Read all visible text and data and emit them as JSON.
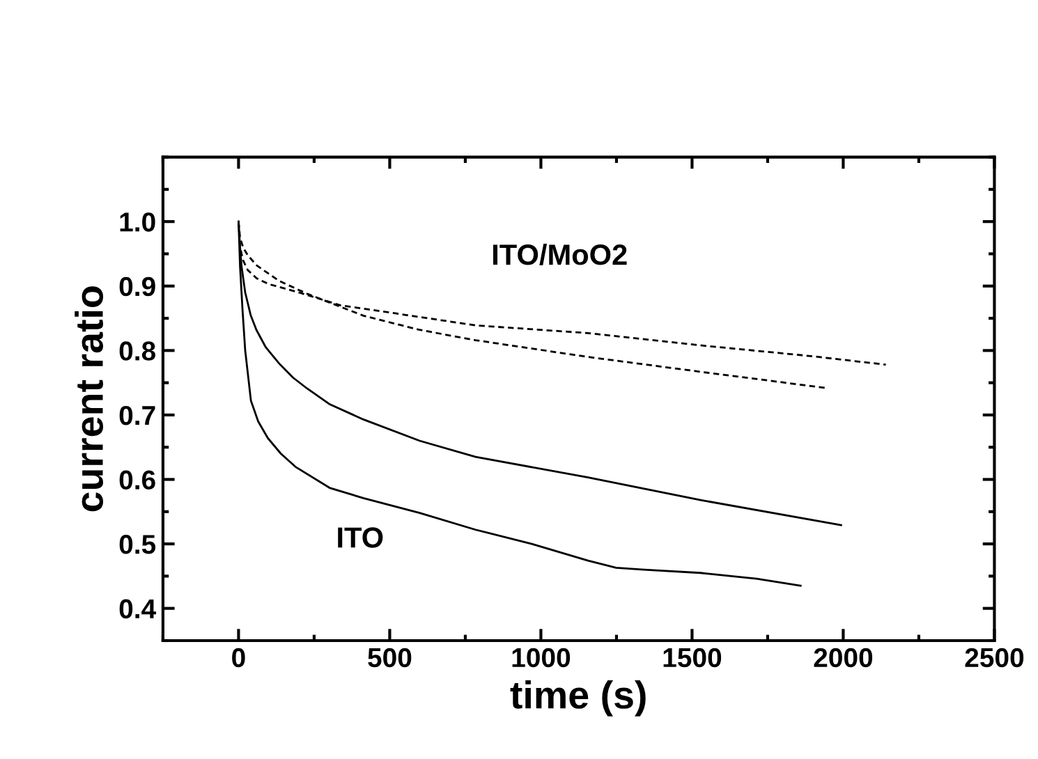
{
  "chart_data": {
    "type": "line",
    "xlabel": "time (s)",
    "ylabel": "current ratio",
    "xlim": [
      -250,
      2500
    ],
    "xticks": [
      0,
      500,
      1000,
      1500,
      2000,
      2500
    ],
    "ylim": [
      0.35,
      1.1
    ],
    "yticks": [
      {
        "value": 0.4,
        "label": "0.4"
      },
      {
        "value": 0.5,
        "label": "0.5"
      },
      {
        "value": 0.6,
        "label": "0.6"
      },
      {
        "value": 0.7,
        "label": "0.7"
      },
      {
        "value": 0.8,
        "label": "0.8"
      },
      {
        "value": 0.9,
        "label": "0.9"
      },
      {
        "value": 1.0,
        "label": "1.0"
      }
    ],
    "grid": false,
    "legend": false,
    "marker": "none",
    "annotations": [
      "ITO/MoO2",
      "ITO"
    ],
    "series": [
      {
        "color": "#000000",
        "line_style": "dashed",
        "x": [
          0,
          5,
          15,
          30,
          60,
          100,
          200,
          338,
          413,
          784,
          1156,
          1528,
          1900,
          2141
        ],
        "values": [
          1.0,
          0.96,
          0.94,
          0.925,
          0.912,
          0.903,
          0.89,
          0.87,
          0.865,
          0.839,
          0.827,
          0.808,
          0.791,
          0.778
        ]
      },
      {
        "color": "#000000",
        "line_style": "dashed",
        "x": [
          0,
          5,
          15,
          30,
          60,
          100,
          134,
          227,
          413,
          599,
          784,
          1156,
          1528,
          1941
        ],
        "values": [
          1.0,
          0.975,
          0.96,
          0.948,
          0.932,
          0.919,
          0.908,
          0.888,
          0.854,
          0.832,
          0.816,
          0.79,
          0.767,
          0.742
        ]
      },
      {
        "color": "#000000",
        "line_style": "solid",
        "x": [
          0,
          5,
          10,
          22,
          40,
          59,
          90,
          134,
          180,
          227,
          300,
          413,
          599,
          784,
          1156,
          1528,
          1993
        ],
        "values": [
          1.0,
          0.96,
          0.93,
          0.89,
          0.855,
          0.832,
          0.805,
          0.78,
          0.758,
          0.741,
          0.717,
          0.693,
          0.66,
          0.635,
          0.603,
          0.568,
          0.529
        ]
      },
      {
        "color": "#000000",
        "line_style": "solid",
        "x": [
          0,
          5,
          13,
          22,
          41,
          65,
          97,
          140,
          190,
          301,
          413,
          599,
          784,
          970,
          1156,
          1249,
          1342,
          1528,
          1714,
          1859
        ],
        "values": [
          1.0,
          0.93,
          0.864,
          0.8,
          0.722,
          0.69,
          0.664,
          0.64,
          0.619,
          0.587,
          0.571,
          0.548,
          0.522,
          0.5,
          0.474,
          0.463,
          0.46,
          0.455,
          0.446,
          0.435
        ]
      }
    ]
  }
}
